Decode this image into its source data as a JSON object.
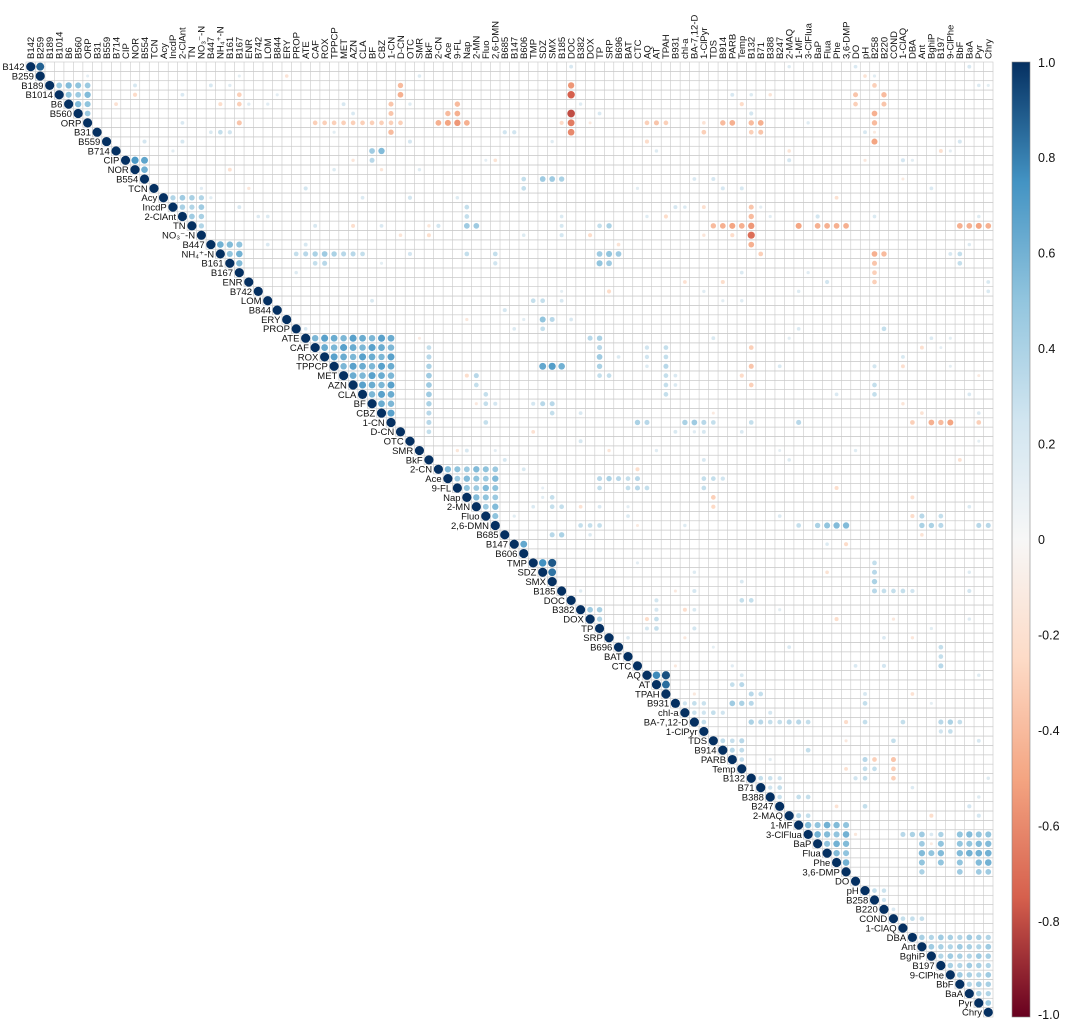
{
  "chart_data": {
    "type": "heatmap",
    "subtype": "correlation-upper-triangle-circles",
    "title": "",
    "xlabel": "",
    "ylabel": "",
    "grid": true,
    "legend": "right",
    "colorscale": {
      "min": -1.0,
      "max": 1.0,
      "ticks": [
        "1.0",
        "0.8",
        "0.6",
        "0.4",
        "0.2",
        "0",
        "-0.2",
        "-0.4",
        "-0.6",
        "-0.8",
        "-1.0"
      ],
      "stops": [
        {
          "v": -1.0,
          "color": "#67001f"
        },
        {
          "v": -0.75,
          "color": "#d6604d"
        },
        {
          "v": -0.5,
          "color": "#f4a582"
        },
        {
          "v": -0.25,
          "color": "#fddbc7"
        },
        {
          "v": 0.0,
          "color": "#f7f7f7"
        },
        {
          "v": 0.25,
          "color": "#d1e5f0"
        },
        {
          "v": 0.5,
          "color": "#92c5de"
        },
        {
          "v": 0.75,
          "color": "#4393c3"
        },
        {
          "v": 1.0,
          "color": "#053061"
        }
      ]
    },
    "variables": [
      "B142",
      "B259",
      "B189",
      "B1014",
      "B6",
      "B560",
      "ORP",
      "B31",
      "B559",
      "B714",
      "CIP",
      "NOR",
      "B554",
      "TCN",
      "Acy",
      "IncdP",
      "2-ClAnt",
      "TN",
      "NO₃⁻-N",
      "B447",
      "NH₄⁺-N",
      "B161",
      "B167",
      "ENR",
      "B742",
      "LOM",
      "B844",
      "ERY",
      "PROP",
      "ATE",
      "CAF",
      "ROX",
      "TPPCP",
      "MET",
      "AZN",
      "CLA",
      "BF",
      "CBZ",
      "1-CN",
      "D-CN",
      "OTC",
      "SMR",
      "BkF",
      "2-CN",
      "Ace",
      "9-FL",
      "Nap",
      "2-MN",
      "Fluo",
      "2,6-DMN",
      "B685",
      "B147",
      "B606",
      "TMP",
      "SDZ",
      "SMX",
      "B185",
      "DOC",
      "B382",
      "DOX",
      "TP",
      "SRP",
      "B696",
      "BAT",
      "CTC",
      "AQ",
      "AT",
      "TPAH",
      "B931",
      "chl-a",
      "BA-7,12-D",
      "1-ClPyr",
      "TDS",
      "B914",
      "PARB",
      "Temp",
      "B132",
      "B71",
      "B388",
      "B247",
      "2-MAQ",
      "1-MF",
      "3-ClFlua",
      "BaP",
      "Flua",
      "Phe",
      "3,6-DMP",
      "DO",
      "pH",
      "B258",
      "B220",
      "COND",
      "1-ClAQ",
      "DBA",
      "Ant",
      "BghiP",
      "B197",
      "9-ClPhe",
      "BbF",
      "BaA",
      "Pyr",
      "Chry"
    ],
    "blocks": [
      {
        "from": 0,
        "to": 1,
        "r": 0.95
      },
      {
        "from": 2,
        "to": 6,
        "r": 0.55
      },
      {
        "from": 10,
        "to": 12,
        "r": 0.72
      },
      {
        "from": 14,
        "to": 18,
        "r": 0.45
      },
      {
        "from": 19,
        "to": 22,
        "r": 0.6
      },
      {
        "from": 29,
        "to": 38,
        "r": 0.68
      },
      {
        "from": 43,
        "to": 49,
        "r": 0.55
      },
      {
        "from": 51,
        "to": 52,
        "r": 0.7
      },
      {
        "from": 53,
        "to": 55,
        "r": 0.9
      },
      {
        "from": 58,
        "to": 60,
        "r": 0.45
      },
      {
        "from": 65,
        "to": 67,
        "r": 0.92
      },
      {
        "from": 68,
        "to": 71,
        "r": 0.3
      },
      {
        "from": 72,
        "to": 75,
        "r": 0.35
      },
      {
        "from": 76,
        "to": 79,
        "r": 0.3
      },
      {
        "from": 81,
        "to": 86,
        "r": 0.6
      },
      {
        "from": 88,
        "to": 90,
        "r": 0.3
      },
      {
        "from": 93,
        "to": 101,
        "r": 0.45
      }
    ],
    "cells": [
      [
        7,
        20,
        0.3
      ],
      [
        7,
        21,
        0.25
      ],
      [
        9,
        37,
        0.55
      ],
      [
        9,
        36,
        0.45
      ],
      [
        10,
        36,
        0.35
      ],
      [
        7,
        57,
        -0.6
      ],
      [
        5,
        57,
        -0.8
      ],
      [
        3,
        57,
        -0.75
      ],
      [
        2,
        57,
        -0.55
      ],
      [
        6,
        57,
        -0.65
      ],
      [
        3,
        22,
        -0.3
      ],
      [
        4,
        22,
        -0.3
      ],
      [
        6,
        22,
        -0.35
      ],
      [
        6,
        30,
        -0.3
      ],
      [
        6,
        31,
        -0.3
      ],
      [
        6,
        32,
        -0.3
      ],
      [
        6,
        33,
        -0.3
      ],
      [
        6,
        34,
        -0.3
      ],
      [
        6,
        35,
        -0.3
      ],
      [
        6,
        36,
        -0.3
      ],
      [
        6,
        37,
        -0.3
      ],
      [
        6,
        38,
        -0.3
      ],
      [
        6,
        39,
        -0.3
      ],
      [
        6,
        43,
        -0.45
      ],
      [
        6,
        44,
        -0.5
      ],
      [
        6,
        45,
        -0.55
      ],
      [
        6,
        46,
        -0.45
      ],
      [
        5,
        44,
        -0.4
      ],
      [
        5,
        45,
        -0.45
      ],
      [
        4,
        45,
        -0.4
      ],
      [
        3,
        39,
        -0.45
      ],
      [
        2,
        39,
        -0.4
      ],
      [
        4,
        38,
        -0.35
      ],
      [
        5,
        38,
        -0.35
      ],
      [
        7,
        38,
        -0.4
      ],
      [
        6,
        65,
        -0.3
      ],
      [
        6,
        66,
        -0.35
      ],
      [
        6,
        67,
        -0.3
      ],
      [
        6,
        76,
        -0.4
      ],
      [
        6,
        77,
        -0.45
      ],
      [
        7,
        76,
        -0.3
      ],
      [
        7,
        77,
        -0.35
      ],
      [
        3,
        87,
        -0.35
      ],
      [
        4,
        87,
        -0.3
      ],
      [
        8,
        89,
        -0.5
      ],
      [
        6,
        89,
        -0.4
      ],
      [
        5,
        89,
        -0.45
      ],
      [
        2,
        89,
        -0.3
      ],
      [
        3,
        90,
        -0.4
      ],
      [
        4,
        90,
        -0.35
      ],
      [
        7,
        50,
        0.25
      ],
      [
        7,
        51,
        0.25
      ],
      [
        7,
        71,
        -0.3
      ],
      [
        6,
        73,
        -0.4
      ],
      [
        6,
        74,
        -0.45
      ],
      [
        17,
        72,
        -0.4
      ],
      [
        17,
        73,
        -0.45
      ],
      [
        17,
        74,
        -0.5
      ],
      [
        17,
        75,
        -0.45
      ],
      [
        17,
        81,
        -0.5
      ],
      [
        17,
        83,
        -0.45
      ],
      [
        17,
        84,
        -0.45
      ],
      [
        17,
        85,
        -0.45
      ],
      [
        17,
        86,
        -0.45
      ],
      [
        17,
        98,
        -0.45
      ],
      [
        17,
        99,
        -0.45
      ],
      [
        17,
        100,
        -0.5
      ],
      [
        17,
        101,
        -0.45
      ],
      [
        18,
        76,
        -0.7
      ],
      [
        17,
        76,
        -0.55
      ],
      [
        16,
        76,
        -0.4
      ],
      [
        15,
        76,
        -0.35
      ],
      [
        19,
        76,
        -0.45
      ],
      [
        20,
        77,
        -0.3
      ],
      [
        20,
        89,
        -0.45
      ],
      [
        20,
        90,
        -0.4
      ],
      [
        21,
        89,
        -0.35
      ],
      [
        22,
        89,
        -0.3
      ],
      [
        23,
        89,
        -0.3
      ],
      [
        17,
        46,
        0.45
      ],
      [
        17,
        47,
        0.45
      ],
      [
        15,
        46,
        0.3
      ],
      [
        16,
        46,
        0.3
      ],
      [
        17,
        61,
        0.4
      ],
      [
        17,
        60,
        0.3
      ],
      [
        20,
        28,
        0.3
      ],
      [
        20,
        29,
        0.35
      ],
      [
        20,
        30,
        0.4
      ],
      [
        20,
        31,
        0.45
      ],
      [
        20,
        32,
        0.4
      ],
      [
        20,
        33,
        0.35
      ],
      [
        20,
        34,
        0.35
      ],
      [
        20,
        35,
        0.3
      ],
      [
        21,
        30,
        0.3
      ],
      [
        21,
        31,
        0.35
      ],
      [
        20,
        60,
        0.45
      ],
      [
        20,
        61,
        0.5
      ],
      [
        20,
        62,
        0.45
      ],
      [
        21,
        60,
        0.5
      ],
      [
        21,
        61,
        0.45
      ],
      [
        20,
        46,
        0.3
      ],
      [
        20,
        49,
        0.3
      ],
      [
        21,
        49,
        0.25
      ],
      [
        20,
        98,
        0.3
      ],
      [
        21,
        98,
        0.3
      ],
      [
        12,
        54,
        0.45
      ],
      [
        12,
        55,
        0.45
      ],
      [
        12,
        56,
        0.4
      ],
      [
        13,
        52,
        0.3
      ],
      [
        12,
        52,
        0.3
      ],
      [
        27,
        54,
        0.5
      ],
      [
        27,
        55,
        0.35
      ],
      [
        28,
        54,
        0.3
      ],
      [
        25,
        53,
        0.3
      ],
      [
        25,
        54,
        0.3
      ],
      [
        32,
        54,
        0.65
      ],
      [
        32,
        55,
        0.7
      ],
      [
        32,
        56,
        0.6
      ],
      [
        32,
        60,
        0.4
      ],
      [
        31,
        60,
        0.45
      ],
      [
        30,
        60,
        0.35
      ],
      [
        29,
        59,
        0.35
      ],
      [
        29,
        60,
        0.4
      ],
      [
        33,
        60,
        0.3
      ],
      [
        33,
        61,
        0.3
      ],
      [
        30,
        42,
        0.3
      ],
      [
        31,
        42,
        0.35
      ],
      [
        32,
        42,
        0.4
      ],
      [
        33,
        42,
        0.45
      ],
      [
        34,
        42,
        0.45
      ],
      [
        35,
        42,
        0.45
      ],
      [
        36,
        42,
        0.4
      ],
      [
        37,
        42,
        0.35
      ],
      [
        38,
        42,
        0.35
      ],
      [
        39,
        42,
        0.3
      ],
      [
        33,
        47,
        0.35
      ],
      [
        34,
        47,
        0.3
      ],
      [
        35,
        48,
        0.3
      ],
      [
        36,
        48,
        0.3
      ],
      [
        38,
        48,
        0.3
      ],
      [
        36,
        54,
        0.35
      ],
      [
        36,
        55,
        0.35
      ],
      [
        37,
        55,
        0.3
      ],
      [
        38,
        64,
        0.4
      ],
      [
        38,
        65,
        0.35
      ],
      [
        38,
        69,
        0.4
      ],
      [
        38,
        70,
        0.45
      ],
      [
        38,
        71,
        0.35
      ],
      [
        38,
        72,
        0.3
      ],
      [
        38,
        76,
        0.3
      ],
      [
        38,
        81,
        0.35
      ],
      [
        38,
        95,
        -0.45
      ],
      [
        38,
        96,
        -0.4
      ],
      [
        38,
        97,
        -0.5
      ],
      [
        38,
        93,
        -0.3
      ],
      [
        38,
        100,
        -0.3
      ],
      [
        34,
        76,
        -0.3
      ],
      [
        30,
        76,
        -0.3
      ],
      [
        32,
        76,
        -0.35
      ],
      [
        34,
        89,
        0.3
      ],
      [
        35,
        89,
        0.3
      ],
      [
        28,
        90,
        0.3
      ],
      [
        30,
        67,
        0.3
      ],
      [
        31,
        67,
        0.3
      ],
      [
        32,
        67,
        0.35
      ],
      [
        33,
        67,
        0.3
      ],
      [
        34,
        67,
        0.3
      ],
      [
        35,
        67,
        0.3
      ],
      [
        30,
        65,
        0.25
      ],
      [
        31,
        65,
        0.25
      ],
      [
        44,
        60,
        0.35
      ],
      [
        44,
        61,
        0.4
      ],
      [
        44,
        62,
        0.35
      ],
      [
        44,
        63,
        0.3
      ],
      [
        44,
        64,
        0.35
      ],
      [
        45,
        60,
        0.3
      ],
      [
        45,
        63,
        0.3
      ],
      [
        45,
        64,
        0.35
      ],
      [
        45,
        65,
        0.3
      ],
      [
        44,
        71,
        0.3
      ],
      [
        45,
        71,
        0.3
      ],
      [
        44,
        72,
        0.3
      ],
      [
        44,
        73,
        0.25
      ],
      [
        46,
        72,
        -0.3
      ],
      [
        47,
        72,
        -0.25
      ],
      [
        49,
        84,
        0.5
      ],
      [
        49,
        85,
        0.55
      ],
      [
        49,
        86,
        0.55
      ],
      [
        49,
        83,
        0.4
      ],
      [
        49,
        81,
        0.3
      ],
      [
        49,
        94,
        0.4
      ],
      [
        49,
        95,
        0.4
      ],
      [
        49,
        96,
        0.35
      ],
      [
        49,
        100,
        0.35
      ],
      [
        49,
        101,
        0.35
      ],
      [
        48,
        94,
        0.35
      ],
      [
        48,
        96,
        0.3
      ],
      [
        47,
        55,
        0.3
      ],
      [
        47,
        56,
        0.3
      ],
      [
        46,
        55,
        0.3
      ],
      [
        50,
        55,
        0.35
      ],
      [
        50,
        56,
        0.4
      ],
      [
        49,
        58,
        0.3
      ],
      [
        49,
        59,
        0.3
      ],
      [
        49,
        60,
        0.3
      ],
      [
        54,
        89,
        0.35
      ],
      [
        55,
        89,
        0.4
      ],
      [
        56,
        89,
        0.35
      ],
      [
        56,
        90,
        0.3
      ],
      [
        56,
        91,
        0.3
      ],
      [
        56,
        92,
        0.3
      ],
      [
        56,
        93,
        0.25
      ],
      [
        53,
        89,
        0.3
      ],
      [
        57,
        75,
        0.3
      ],
      [
        57,
        76,
        0.3
      ],
      [
        59,
        66,
        0.3
      ],
      [
        60,
        66,
        0.3
      ],
      [
        62,
        96,
        0.3
      ],
      [
        63,
        96,
        0.3
      ],
      [
        64,
        96,
        0.35
      ],
      [
        66,
        74,
        0.3
      ],
      [
        66,
        75,
        0.35
      ],
      [
        67,
        76,
        0.35
      ],
      [
        67,
        77,
        0.3
      ],
      [
        68,
        74,
        0.45
      ],
      [
        68,
        75,
        0.4
      ],
      [
        68,
        76,
        0.35
      ],
      [
        68,
        88,
        0.3
      ],
      [
        69,
        72,
        0.3
      ],
      [
        69,
        73,
        0.25
      ],
      [
        70,
        76,
        0.4
      ],
      [
        70,
        77,
        0.35
      ],
      [
        70,
        78,
        0.3
      ],
      [
        70,
        79,
        0.3
      ],
      [
        70,
        80,
        0.35
      ],
      [
        70,
        81,
        0.35
      ],
      [
        70,
        82,
        0.3
      ],
      [
        70,
        88,
        0.3
      ],
      [
        70,
        92,
        0.3
      ],
      [
        70,
        96,
        0.35
      ],
      [
        70,
        97,
        0.4
      ],
      [
        70,
        98,
        0.3
      ],
      [
        71,
        97,
        0.3
      ],
      [
        71,
        96,
        0.25
      ],
      [
        72,
        91,
        0.3
      ],
      [
        73,
        82,
        0.3
      ],
      [
        74,
        88,
        0.35
      ],
      [
        74,
        89,
        -0.3
      ],
      [
        75,
        88,
        0.3
      ],
      [
        75,
        89,
        0.3
      ],
      [
        75,
        91,
        -0.3
      ],
      [
        76,
        91,
        -0.3
      ],
      [
        74,
        91,
        -0.35
      ],
      [
        76,
        88,
        0.3
      ],
      [
        76,
        87,
        0.25
      ],
      [
        78,
        81,
        0.3
      ],
      [
        78,
        82,
        0.3
      ],
      [
        79,
        88,
        0.3
      ],
      [
        80,
        81,
        0.35
      ],
      [
        80,
        82,
        0.3
      ],
      [
        82,
        92,
        0.35
      ],
      [
        82,
        93,
        0.4
      ],
      [
        82,
        94,
        0.45
      ],
      [
        82,
        96,
        0.4
      ],
      [
        82,
        98,
        0.5
      ],
      [
        82,
        99,
        0.55
      ],
      [
        82,
        100,
        0.5
      ],
      [
        82,
        101,
        0.5
      ],
      [
        83,
        94,
        0.45
      ],
      [
        83,
        96,
        0.5
      ],
      [
        83,
        98,
        0.5
      ],
      [
        83,
        99,
        0.5
      ],
      [
        83,
        100,
        0.55
      ],
      [
        83,
        101,
        0.55
      ],
      [
        84,
        94,
        0.55
      ],
      [
        84,
        95,
        0.5
      ],
      [
        84,
        96,
        0.55
      ],
      [
        84,
        98,
        0.55
      ],
      [
        84,
        99,
        0.6
      ],
      [
        84,
        100,
        0.6
      ],
      [
        84,
        101,
        0.6
      ],
      [
        85,
        94,
        0.5
      ],
      [
        85,
        96,
        0.5
      ],
      [
        85,
        98,
        0.5
      ],
      [
        85,
        100,
        0.55
      ],
      [
        85,
        101,
        0.6
      ],
      [
        86,
        94,
        0.4
      ],
      [
        86,
        98,
        0.45
      ],
      [
        86,
        100,
        0.45
      ],
      [
        86,
        101,
        0.45
      ],
      [
        91,
        92,
        0.3
      ],
      [
        91,
        93,
        0.3
      ],
      [
        91,
        94,
        0.3
      ]
    ],
    "noise_seed": 7
  }
}
